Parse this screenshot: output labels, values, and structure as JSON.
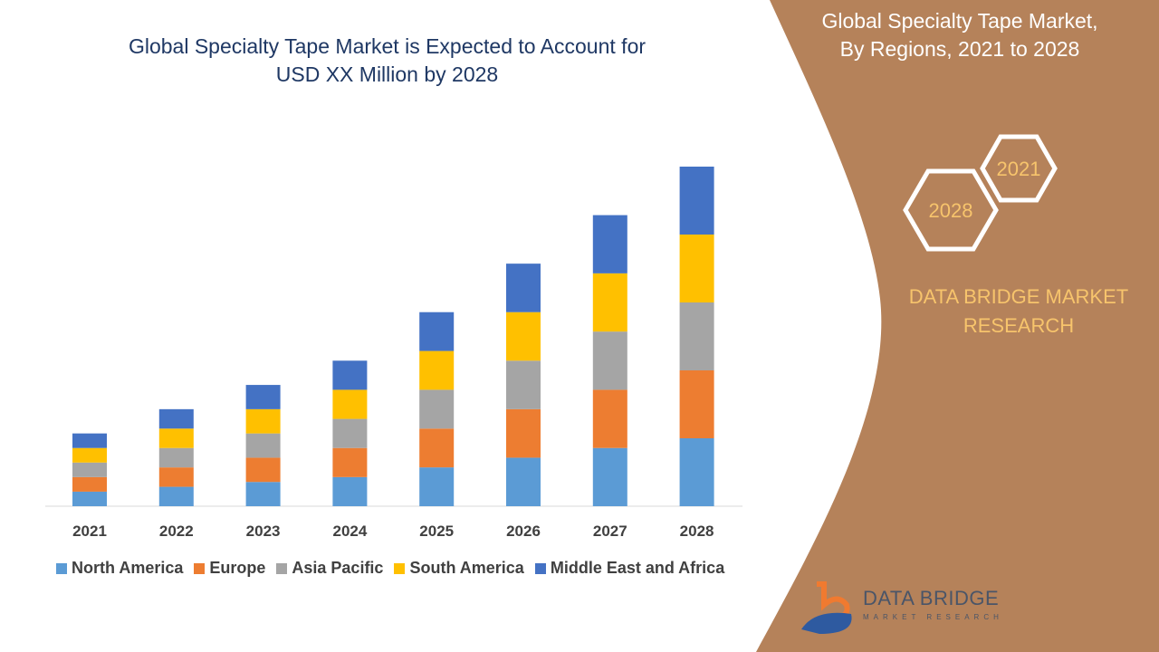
{
  "header": {
    "title_line1": "Global Specialty Tape Market is Expected to Account for",
    "title_line2": "USD XX Million by 2028"
  },
  "side_panel": {
    "title_line1": "Global Specialty Tape Market,",
    "title_line2": "By Regions, 2021 to 2028",
    "hex_start": "2021",
    "hex_end": "2028",
    "brand_line1": "DATA BRIDGE MARKET",
    "brand_line2": "RESEARCH",
    "background_color": "#b5825a"
  },
  "logo": {
    "name": "DATA BRIDGE",
    "tagline": "MARKET RESEARCH"
  },
  "chart_data": {
    "type": "bar",
    "stacked": true,
    "title": "",
    "xlabel": "",
    "ylabel": "",
    "y_axis_shown": false,
    "grid": false,
    "legend_position": "bottom",
    "categories": [
      "2021",
      "2022",
      "2023",
      "2024",
      "2025",
      "2026",
      "2027",
      "2028"
    ],
    "ylim": [
      0,
      35
    ],
    "series": [
      {
        "name": "North America",
        "color": "#5b9bd5",
        "values": [
          1.5,
          2,
          2.5,
          3,
          4,
          5,
          6,
          7
        ]
      },
      {
        "name": "Europe",
        "color": "#ed7d31",
        "values": [
          1.5,
          2,
          2.5,
          3,
          4,
          5,
          6,
          7
        ]
      },
      {
        "name": "Asia Pacific",
        "color": "#a5a5a5",
        "values": [
          1.5,
          2,
          2.5,
          3,
          4,
          5,
          6,
          7
        ]
      },
      {
        "name": "South America",
        "color": "#ffc000",
        "values": [
          1.5,
          2,
          2.5,
          3,
          4,
          5,
          6,
          7
        ]
      },
      {
        "name": "Middle East and Africa",
        "color": "#4472c4",
        "values": [
          1.5,
          2,
          2.5,
          3,
          4,
          5,
          6,
          7
        ]
      }
    ]
  }
}
